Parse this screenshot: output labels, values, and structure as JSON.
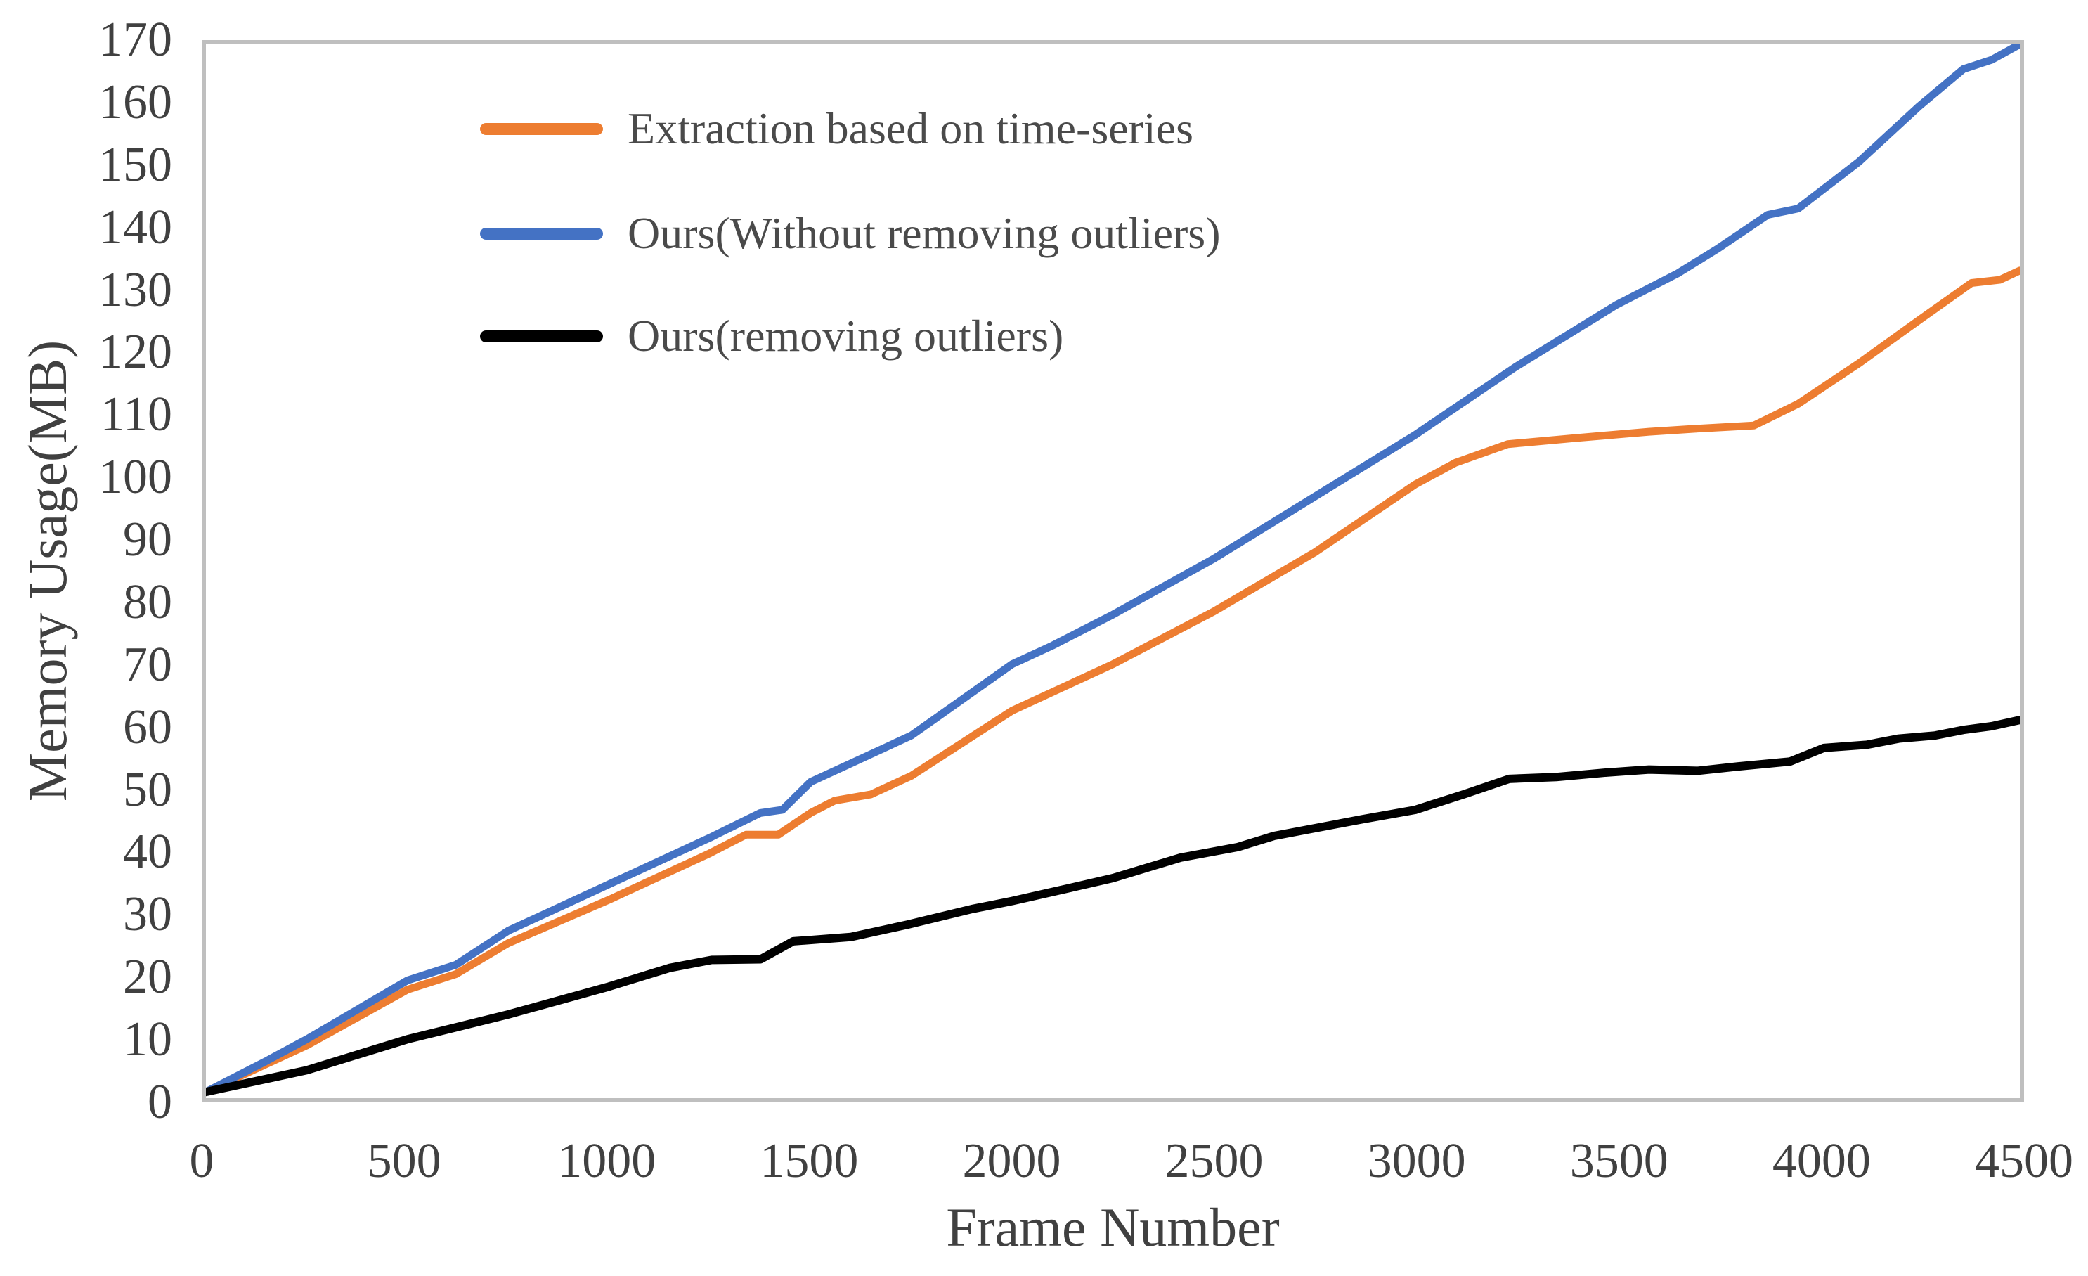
{
  "figure": {
    "background": "#ffffff",
    "axis_line_color": "#bfbfbf",
    "text_color": "#404040"
  },
  "chart_data": {
    "type": "line",
    "title": "",
    "xlabel": "Frame Number",
    "ylabel": "Memory Usage(MB)",
    "xlim": [
      0,
      4500
    ],
    "ylim": [
      0,
      170
    ],
    "x_ticks": [
      0,
      500,
      1000,
      1500,
      2000,
      2500,
      3000,
      3500,
      4000,
      4500
    ],
    "y_ticks": [
      0,
      10,
      20,
      30,
      40,
      50,
      60,
      70,
      80,
      90,
      100,
      110,
      120,
      130,
      140,
      150,
      160,
      170
    ],
    "grid": false,
    "legend_position": "top-left-inside",
    "series": [
      {
        "name": "Extraction based on time-series",
        "color": "#ED7D31",
        "line_width": 11,
        "x": [
          0,
          150,
          250,
          500,
          620,
          750,
          1000,
          1250,
          1340,
          1420,
          1500,
          1560,
          1650,
          1750,
          2000,
          2250,
          2500,
          2750,
          3000,
          3100,
          3230,
          3400,
          3580,
          3700,
          3840,
          3950,
          4100,
          4250,
          4380,
          4450,
          4500
        ],
        "y": [
          1,
          5.5,
          8.5,
          17.5,
          20,
          25,
          32,
          39.5,
          42.5,
          42.5,
          46,
          48,
          49,
          52,
          62.5,
          70,
          78.5,
          88,
          99,
          102.5,
          105.5,
          106.5,
          107.5,
          108,
          108.5,
          112,
          118.5,
          125.5,
          131.5,
          132,
          133.5
        ]
      },
      {
        "name": "Ours(Without removing outliers)",
        "color": "#4472C4",
        "line_width": 11,
        "x": [
          0,
          150,
          250,
          500,
          620,
          750,
          1000,
          1250,
          1375,
          1430,
          1500,
          1600,
          1750,
          2000,
          2100,
          2250,
          2500,
          2750,
          3000,
          3250,
          3500,
          3650,
          3750,
          3875,
          3950,
          4100,
          4250,
          4360,
          4430,
          4500
        ],
        "y": [
          1,
          6,
          9.5,
          19,
          21.5,
          27,
          34.5,
          42,
          46,
          46.5,
          51,
          54,
          58.5,
          70,
          73,
          78,
          87,
          97,
          107,
          118,
          128,
          133,
          137,
          142.5,
          143.5,
          151,
          160,
          166,
          167.5,
          170
        ]
      },
      {
        "name": "Ours(removing outliers)",
        "color": "#000000",
        "line_width": 12,
        "x": [
          0,
          250,
          500,
          750,
          1000,
          1150,
          1255,
          1376,
          1457,
          1600,
          1741,
          1900,
          2000,
          2150,
          2250,
          2418,
          2560,
          2650,
          2870,
          3000,
          3120,
          3233,
          3350,
          3470,
          3580,
          3700,
          3800,
          3930,
          4014,
          4120,
          4200,
          4290,
          4360,
          4430,
          4500
        ],
        "y": [
          1,
          4.5,
          9.5,
          13.5,
          18,
          21,
          22.3,
          22.4,
          25.3,
          26,
          28,
          30.5,
          31.8,
          34,
          35.5,
          38.8,
          40.5,
          42.3,
          45,
          46.5,
          49,
          51.5,
          51.8,
          52.5,
          53,
          52.8,
          53.5,
          54.3,
          56.5,
          57,
          58,
          58.5,
          59.4,
          60,
          61
        ]
      }
    ]
  }
}
